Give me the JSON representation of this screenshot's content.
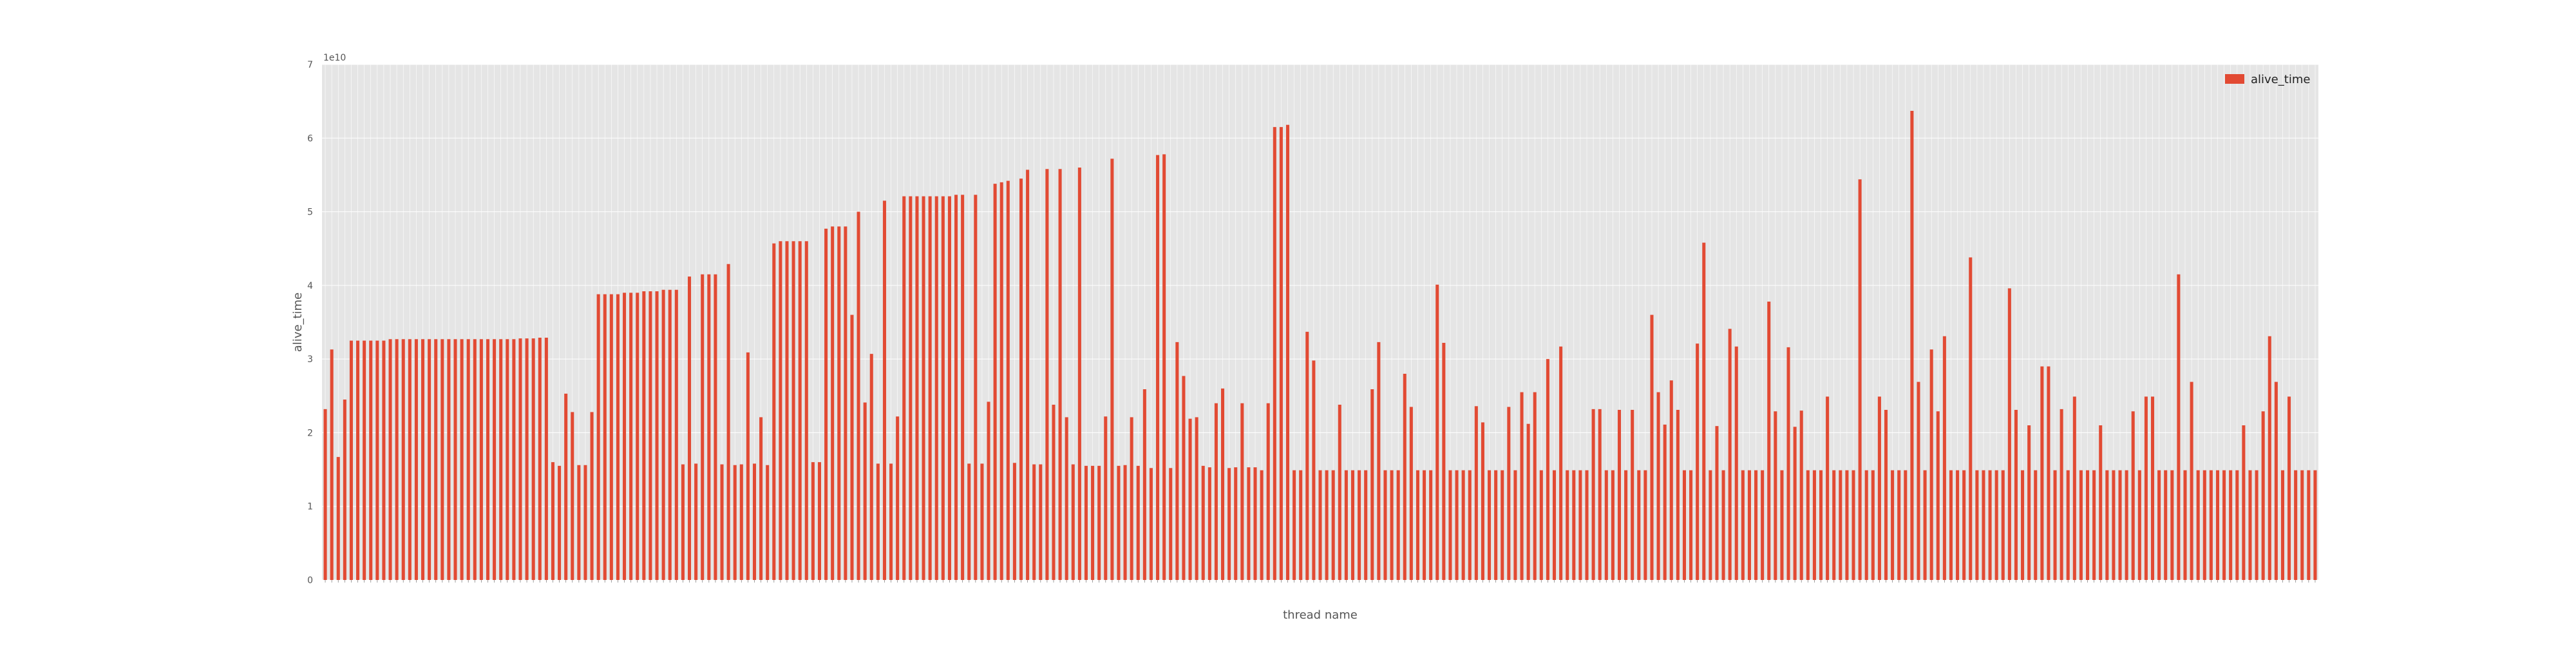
{
  "chart_data": {
    "type": "bar",
    "xlabel": "thread name",
    "ylabel": "alive_time",
    "offset_text": "1e10",
    "ylim": [
      0,
      7
    ],
    "yticks": [
      0,
      1,
      2,
      3,
      4,
      5,
      6,
      7
    ],
    "grid": true,
    "legend_position": "top-right",
    "series": [
      {
        "name": "alive_time",
        "color": "#e24a33",
        "values": [
          2.32,
          3.13,
          1.67,
          2.45,
          3.25,
          3.25,
          3.25,
          3.25,
          3.25,
          3.25,
          3.27,
          3.27,
          3.27,
          3.27,
          3.27,
          3.27,
          3.27,
          3.27,
          3.27,
          3.27,
          3.27,
          3.27,
          3.27,
          3.27,
          3.27,
          3.27,
          3.27,
          3.27,
          3.27,
          3.27,
          3.28,
          3.28,
          3.28,
          3.29,
          3.29,
          1.6,
          1.55,
          2.53,
          2.28,
          1.56,
          1.56,
          2.28,
          3.88,
          3.88,
          3.88,
          3.88,
          3.9,
          3.9,
          3.9,
          3.92,
          3.92,
          3.92,
          3.94,
          3.94,
          3.94,
          1.57,
          4.12,
          1.58,
          4.15,
          4.15,
          4.15,
          1.57,
          4.29,
          1.56,
          1.57,
          3.09,
          1.58,
          2.21,
          1.56,
          4.57,
          4.6,
          4.6,
          4.6,
          4.6,
          4.6,
          1.6,
          1.6,
          4.77,
          4.8,
          4.8,
          4.8,
          3.6,
          5.0,
          2.41,
          3.07,
          1.58,
          5.15,
          1.58,
          2.22,
          5.21,
          5.21,
          5.21,
          5.21,
          5.21,
          5.21,
          5.21,
          5.21,
          5.23,
          5.23,
          1.58,
          5.23,
          1.58,
          2.42,
          5.38,
          5.4,
          5.42,
          1.59,
          5.45,
          5.57,
          1.57,
          1.57,
          5.58,
          2.38,
          5.58,
          2.21,
          1.57,
          5.6,
          1.55,
          1.55,
          1.55,
          2.22,
          5.72,
          1.55,
          1.56,
          2.21,
          1.55,
          2.59,
          1.52,
          5.77,
          5.78,
          1.52,
          3.23,
          2.77,
          2.19,
          2.21,
          1.55,
          1.53,
          2.4,
          2.6,
          1.52,
          1.53,
          2.4,
          1.53,
          1.53,
          1.49,
          2.4,
          6.15,
          6.15,
          6.18,
          1.49,
          1.49,
          3.37,
          2.98,
          1.49,
          1.49,
          1.49,
          2.38,
          1.49,
          1.49,
          1.49,
          1.49,
          2.59,
          3.23,
          1.49,
          1.49,
          1.49,
          2.8,
          2.35,
          1.49,
          1.49,
          1.49,
          4.01,
          3.22,
          1.49,
          1.49,
          1.49,
          1.49,
          2.36,
          2.14,
          1.49,
          1.49,
          1.49,
          2.35,
          1.49,
          2.55,
          2.12,
          2.55,
          1.49,
          3.0,
          1.49,
          3.17,
          1.49,
          1.49,
          1.49,
          1.49,
          2.32,
          2.32,
          1.49,
          1.49,
          2.31,
          1.49,
          2.31,
          1.49,
          1.49,
          3.6,
          2.55,
          2.11,
          2.71,
          2.31,
          1.49,
          1.49,
          3.21,
          4.58,
          1.49,
          2.09,
          1.49,
          3.41,
          3.17,
          1.49,
          1.49,
          1.49,
          1.49,
          3.78,
          2.29,
          1.49,
          3.16,
          2.08,
          2.3,
          1.49,
          1.49,
          1.49,
          2.49,
          1.49,
          1.49,
          1.49,
          1.49,
          5.44,
          1.49,
          1.49,
          2.49,
          2.31,
          1.49,
          1.49,
          1.49,
          6.37,
          2.69,
          1.49,
          3.13,
          2.29,
          3.31,
          1.49,
          1.49,
          1.49,
          4.38,
          1.49,
          1.49,
          1.49,
          1.49,
          1.49,
          3.96,
          2.31,
          1.49,
          2.1,
          1.49,
          2.9,
          2.9,
          1.49,
          2.32,
          1.49,
          2.49,
          1.49,
          1.49,
          1.49,
          2.1,
          1.49,
          1.49,
          1.49,
          1.49,
          2.29,
          1.49,
          2.49,
          2.49,
          1.49,
          1.49,
          1.49,
          4.15,
          1.49,
          2.69,
          1.49,
          1.49,
          1.49,
          1.49,
          1.49,
          1.49,
          1.49,
          2.1,
          1.49,
          1.49,
          2.29,
          3.31,
          2.69,
          1.49,
          2.49,
          1.49,
          1.49,
          1.49,
          1.49
        ]
      }
    ]
  }
}
